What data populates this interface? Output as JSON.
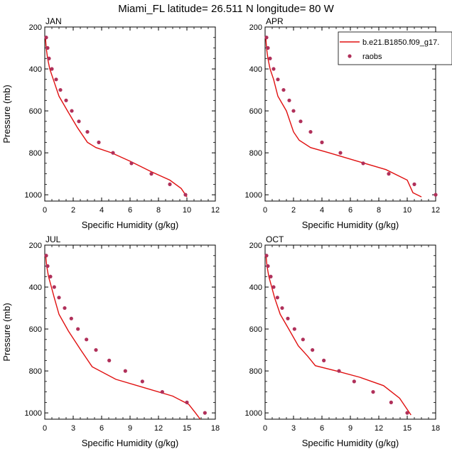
{
  "title": "Miami_FL  latitude= 26.511 N longitude= 80 W",
  "legend": {
    "model_label": "b.e21.B1850.f09_g17.",
    "obs_label": "raobs",
    "model_color": "#e01010",
    "obs_color": "#b0305a"
  },
  "chart_data": [
    {
      "type": "line",
      "title": "JAN",
      "xlabel": "Specific Humidity (g/kg)",
      "ylabel": "Pressure (mb)",
      "xlim": [
        0,
        12
      ],
      "ylim": [
        1030,
        200
      ],
      "xticks": [
        0,
        2,
        4,
        6,
        8,
        10,
        12
      ],
      "xtick_labels": [
        "0",
        "2",
        "4",
        "6",
        "8",
        "10",
        "12"
      ],
      "yticks": [
        200,
        400,
        600,
        800,
        1000
      ],
      "ytick_labels": [
        "200",
        "400",
        "600",
        "800",
        "1000"
      ],
      "series": [
        {
          "name": "b.e21.B1850.f09_g17.",
          "kind": "line",
          "x": [
            0.05,
            0.1,
            0.2,
            0.35,
            0.6,
            1.0,
            1.6,
            2.3,
            3.0,
            3.6,
            4.7,
            6.0,
            7.5,
            8.8,
            9.6,
            10.0
          ],
          "y": [
            250,
            300,
            350,
            400,
            450,
            530,
            600,
            680,
            750,
            775,
            800,
            840,
            890,
            930,
            970,
            1010
          ]
        },
        {
          "name": "raobs",
          "kind": "scatter",
          "x": [
            0.1,
            0.2,
            0.3,
            0.5,
            0.8,
            1.1,
            1.5,
            1.9,
            2.4,
            3.0,
            3.8,
            4.8,
            6.1,
            7.5,
            8.8,
            9.9
          ],
          "y": [
            250,
            300,
            350,
            400,
            450,
            500,
            550,
            600,
            650,
            700,
            750,
            800,
            850,
            900,
            950,
            1000
          ]
        }
      ]
    },
    {
      "type": "line",
      "title": "APR",
      "xlabel": "Specific Humidity (g/kg)",
      "ylabel": "Pressure (mb)",
      "xlim": [
        0,
        12
      ],
      "ylim": [
        1030,
        200
      ],
      "xticks": [
        0,
        2,
        4,
        6,
        8,
        10,
        12
      ],
      "xtick_labels": [
        "0",
        "2",
        "4",
        "6",
        "8",
        "10",
        "12"
      ],
      "yticks": [
        200,
        400,
        600,
        800,
        1000
      ],
      "ytick_labels": [
        "200",
        "400",
        "600",
        "800",
        "1000"
      ],
      "series": [
        {
          "name": "b.e21.B1850.f09_g17.",
          "kind": "line",
          "x": [
            0.05,
            0.1,
            0.2,
            0.35,
            0.6,
            0.9,
            1.5,
            2.0,
            2.4,
            3.2,
            4.5,
            6.5,
            8.5,
            10.0,
            10.4,
            11.0
          ],
          "y": [
            250,
            300,
            350,
            400,
            450,
            530,
            600,
            700,
            740,
            775,
            800,
            840,
            880,
            930,
            990,
            1010
          ]
        },
        {
          "name": "raobs",
          "kind": "scatter",
          "x": [
            0.1,
            0.2,
            0.35,
            0.6,
            0.9,
            1.3,
            1.7,
            2.0,
            2.5,
            3.2,
            4.0,
            5.3,
            6.9,
            8.7,
            10.5,
            12.0
          ],
          "y": [
            250,
            300,
            350,
            400,
            450,
            500,
            550,
            600,
            650,
            700,
            750,
            800,
            850,
            900,
            950,
            1000
          ]
        }
      ]
    },
    {
      "type": "line",
      "title": "JUL",
      "xlabel": "Specific Humidity (g/kg)",
      "ylabel": "Pressure (mb)",
      "xlim": [
        0,
        18
      ],
      "ylim": [
        1030,
        200
      ],
      "xticks": [
        0,
        3,
        6,
        9,
        12,
        15,
        18
      ],
      "xtick_labels": [
        "0",
        "3",
        "6",
        "9",
        "12",
        "15",
        "18"
      ],
      "yticks": [
        200,
        400,
        600,
        800,
        1000
      ],
      "ytick_labels": [
        "200",
        "400",
        "600",
        "800",
        "1000"
      ],
      "series": [
        {
          "name": "b.e21.B1850.f09_g17.",
          "kind": "line",
          "x": [
            0.1,
            0.2,
            0.4,
            0.7,
            1.0,
            1.5,
            2.5,
            3.8,
            5.0,
            7.5,
            10.5,
            13.5,
            15.2,
            15.9,
            16.4
          ],
          "y": [
            250,
            300,
            350,
            400,
            450,
            530,
            610,
            700,
            780,
            840,
            880,
            920,
            960,
            1000,
            1030
          ]
        },
        {
          "name": "raobs",
          "kind": "scatter",
          "x": [
            0.15,
            0.3,
            0.6,
            1.0,
            1.5,
            2.1,
            2.8,
            3.5,
            4.4,
            5.4,
            6.8,
            8.5,
            10.3,
            12.4,
            15.0,
            16.9
          ],
          "y": [
            250,
            300,
            350,
            400,
            450,
            500,
            550,
            600,
            650,
            700,
            750,
            800,
            850,
            900,
            950,
            1000
          ]
        }
      ]
    },
    {
      "type": "line",
      "title": "OCT",
      "xlabel": "Specific Humidity (g/kg)",
      "ylabel": "Pressure (mb)",
      "xlim": [
        0,
        18
      ],
      "ylim": [
        1030,
        200
      ],
      "xticks": [
        0,
        3,
        6,
        9,
        12,
        15,
        18
      ],
      "xtick_labels": [
        "0",
        "3",
        "6",
        "9",
        "12",
        "15",
        "18"
      ],
      "yticks": [
        200,
        400,
        600,
        800,
        1000
      ],
      "ytick_labels": [
        "200",
        "400",
        "600",
        "800",
        "1000"
      ],
      "series": [
        {
          "name": "b.e21.B1850.f09_g17.",
          "kind": "line",
          "x": [
            0.1,
            0.2,
            0.4,
            0.7,
            1.0,
            1.6,
            2.5,
            3.5,
            4.5,
            5.3,
            7.5,
            10.0,
            12.5,
            14.2,
            15.4
          ],
          "y": [
            250,
            300,
            350,
            400,
            450,
            530,
            600,
            680,
            730,
            775,
            800,
            830,
            870,
            930,
            1010
          ]
        },
        {
          "name": "raobs",
          "kind": "scatter",
          "x": [
            0.15,
            0.3,
            0.6,
            0.9,
            1.3,
            1.8,
            2.4,
            3.1,
            4.0,
            5.0,
            6.2,
            7.8,
            9.4,
            11.4,
            13.3,
            15.0
          ],
          "y": [
            250,
            300,
            350,
            400,
            450,
            500,
            550,
            600,
            650,
            700,
            750,
            800,
            850,
            900,
            950,
            1000
          ]
        }
      ]
    }
  ]
}
